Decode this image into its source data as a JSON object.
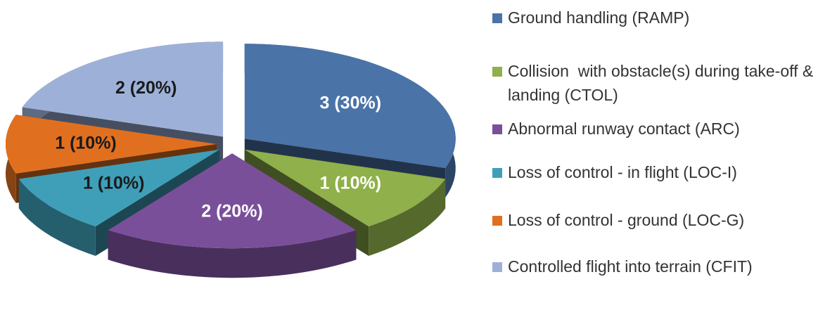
{
  "chart_data": {
    "type": "pie3d",
    "categories": [
      "Ground handling (RAMP)",
      "Collision  with obstacle(s) during take-off & landing (CTOL)",
      "Abnormal runway contact (ARC)",
      "Loss of control - in flight (LOC-I)",
      "Loss of control - ground (LOC-G)",
      "Controlled flight into terrain (CFIT)"
    ],
    "values": [
      3,
      1,
      2,
      1,
      1,
      2
    ],
    "value_labels": [
      "3 (30%)",
      "1 (10%)",
      "2 (20%)",
      "1 (10%)",
      "1 (10%)",
      "2 (20%)"
    ],
    "colors": [
      "#4a73a8",
      "#8fb04a",
      "#7a4f9a",
      "#3f9fb8",
      "#e07020",
      "#9db1d8"
    ],
    "label_colors": [
      "#ffffff",
      "#ffffff",
      "#ffffff",
      "#1a1a1a",
      "#1a1a1a",
      "#1a1a1a"
    ],
    "legend": "right"
  }
}
